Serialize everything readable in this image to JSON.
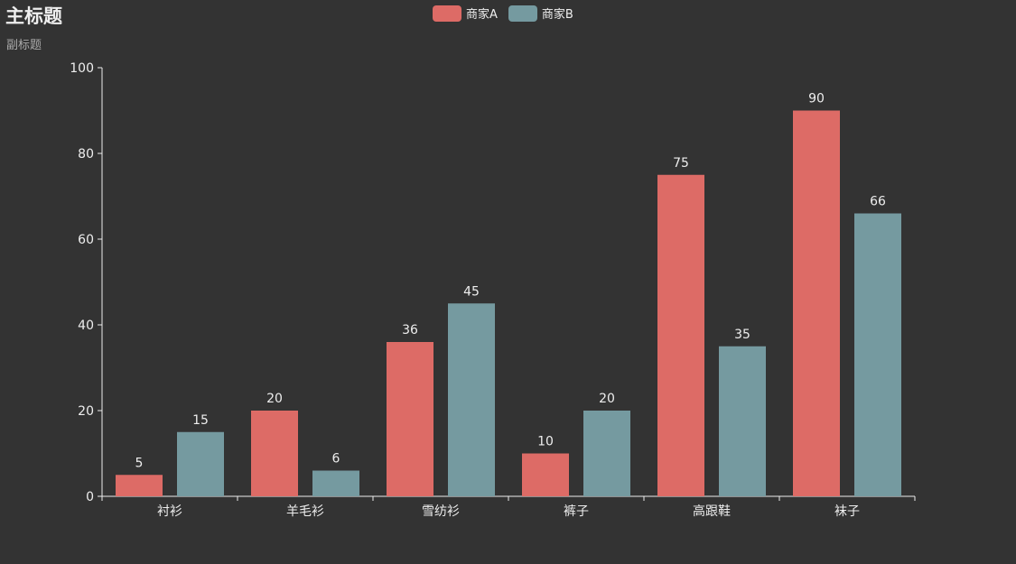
{
  "chart_data": {
    "type": "bar",
    "title": "主标题",
    "subtitle": "副标题",
    "categories": [
      "衬衫",
      "羊毛衫",
      "雪纺衫",
      "裤子",
      "高跟鞋",
      "袜子"
    ],
    "series": [
      {
        "name": "商家A",
        "color": "#dd6b66",
        "values": [
          5,
          20,
          36,
          10,
          75,
          90
        ]
      },
      {
        "name": "商家B",
        "color": "#759aa0",
        "values": [
          15,
          6,
          45,
          20,
          35,
          66
        ]
      }
    ],
    "ylim": [
      0,
      100
    ],
    "yticks": [
      0,
      20,
      40,
      60,
      80,
      100
    ],
    "legend_position": "top-center",
    "grid": false,
    "background": "#333333",
    "axis_color": "#eeeeee"
  }
}
